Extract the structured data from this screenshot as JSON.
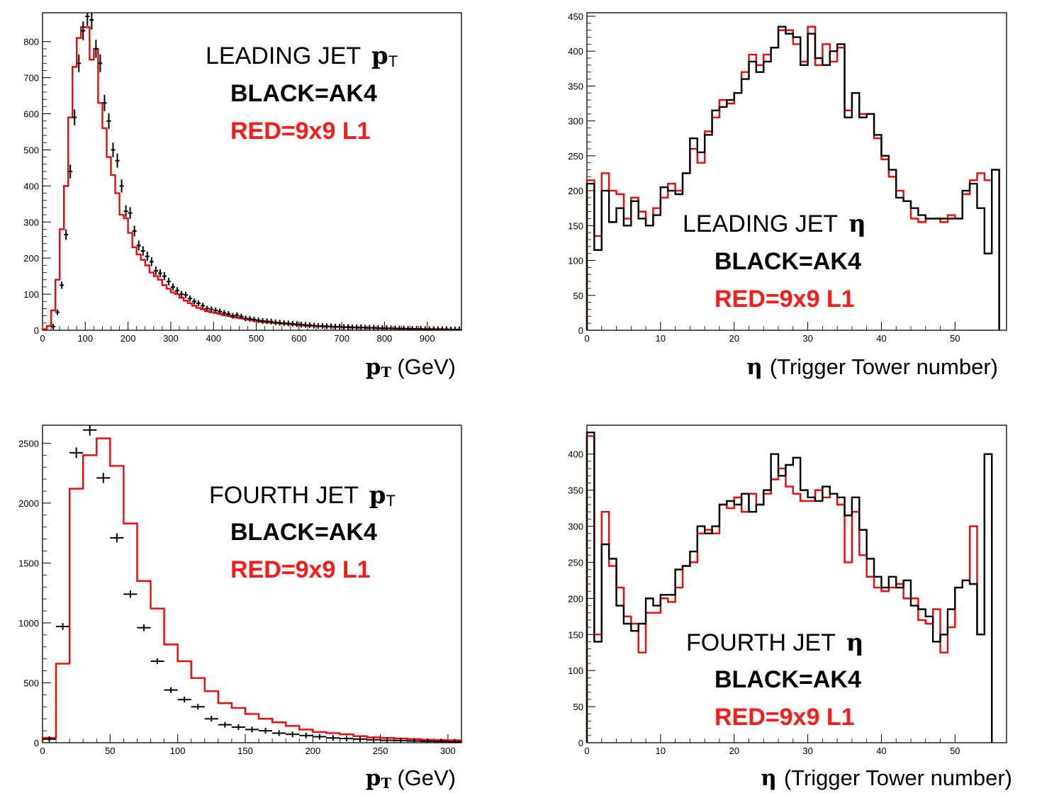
{
  "colors": {
    "ak4": "#000000",
    "l1": "#ff0000"
  },
  "chart_data": [
    {
      "type": "histogram",
      "xlim": [
        0,
        980
      ],
      "ylim": [
        0,
        880
      ],
      "xticks": [
        0,
        100,
        200,
        300,
        400,
        500,
        600,
        700,
        800,
        900
      ],
      "yticks": [
        0,
        100,
        200,
        300,
        400,
        500,
        600,
        700,
        800
      ],
      "xlabel_sym": "pT",
      "xlabel": "(GeV)",
      "annotation": {
        "line1": "LEADING JET",
        "line1_sym": "pT",
        "line2": "BLACK=AK4",
        "line3": "RED=9x9 L1"
      },
      "bin_width": 10,
      "series": [
        {
          "name": "RED=9x9 L1",
          "edges_start": 0,
          "values": [
            3,
            12,
            55,
            140,
            280,
            400,
            590,
            730,
            810,
            840,
            840,
            750,
            780,
            630,
            560,
            480,
            430,
            380,
            320,
            310,
            270,
            230,
            210,
            195,
            180,
            160,
            150,
            140,
            125,
            115,
            105,
            100,
            90,
            82,
            75,
            68,
            62,
            58,
            53,
            50,
            48,
            45,
            42,
            40,
            37,
            35,
            33,
            31,
            29,
            27,
            25,
            23,
            22,
            21,
            20,
            19,
            18,
            17,
            16,
            15,
            14,
            13,
            12,
            12,
            11,
            11,
            10,
            10,
            9,
            9,
            8,
            8,
            8,
            7,
            7,
            7,
            6,
            6,
            6,
            5,
            5,
            5,
            5,
            4,
            4,
            4,
            4,
            3,
            3,
            3,
            3,
            3,
            3,
            2,
            2,
            2,
            2,
            2
          ]
        },
        {
          "name": "BLACK=AK4",
          "type": "points",
          "x": [
            25,
            35,
            45,
            55,
            65,
            75,
            85,
            95,
            105,
            115,
            125,
            135,
            145,
            155,
            165,
            175,
            185,
            195,
            205,
            215,
            225,
            235,
            245,
            255,
            265,
            275,
            285,
            295,
            305,
            315,
            325,
            335,
            345,
            355,
            365,
            375,
            385,
            395,
            405,
            415,
            425,
            435,
            445,
            455,
            465,
            475,
            485,
            495,
            505,
            515,
            525,
            535,
            545,
            555,
            565,
            575,
            585,
            595,
            605,
            615,
            625,
            635,
            645,
            655,
            665,
            675,
            685,
            695,
            705,
            715,
            725,
            735,
            745,
            755,
            765,
            775,
            785,
            795,
            805,
            815,
            825,
            835,
            845,
            855,
            865,
            875,
            885,
            895,
            905,
            915,
            925,
            935,
            945,
            955,
            965,
            975
          ],
          "y": [
            10,
            50,
            125,
            265,
            440,
            590,
            740,
            830,
            870,
            860,
            780,
            740,
            630,
            580,
            500,
            470,
            400,
            330,
            325,
            275,
            235,
            220,
            205,
            190,
            165,
            158,
            150,
            135,
            120,
            110,
            100,
            98,
            88,
            80,
            75,
            68,
            60,
            58,
            55,
            52,
            48,
            45,
            40,
            42,
            38,
            33,
            32,
            30,
            28,
            26,
            25,
            24,
            22,
            21,
            20,
            19,
            18,
            17,
            16,
            15,
            14,
            13,
            12,
            12,
            11,
            11,
            10,
            10,
            9,
            9,
            8,
            8,
            8,
            7,
            7,
            7,
            6,
            6,
            6,
            5,
            5,
            5,
            5,
            4,
            4,
            4,
            4,
            3,
            3,
            3,
            3,
            3,
            3,
            2,
            2,
            2
          ]
        }
      ]
    },
    {
      "type": "histogram",
      "xlim": [
        0,
        57
      ],
      "ylim": [
        0,
        455
      ],
      "xticks": [
        0,
        10,
        20,
        30,
        40,
        50
      ],
      "yticks": [
        0,
        50,
        100,
        150,
        200,
        250,
        300,
        350,
        400,
        450
      ],
      "xlabel_sym": "η",
      "xlabel": "(Trigger Tower number)",
      "annotation": {
        "line1": "LEADING JET",
        "line1_sym": "η",
        "line2": "BLACK=AK4",
        "line3": "RED=9x9 L1"
      },
      "bin_width": 1,
      "series": [
        {
          "name": "RED=9x9 L1",
          "edges_start": 0,
          "values": [
            215,
            135,
            225,
            200,
            195,
            160,
            190,
            170,
            150,
            175,
            190,
            210,
            200,
            225,
            260,
            240,
            285,
            305,
            330,
            325,
            340,
            370,
            395,
            380,
            395,
            405,
            430,
            430,
            410,
            385,
            435,
            380,
            410,
            385,
            405,
            315,
            340,
            310,
            310,
            275,
            245,
            220,
            200,
            185,
            160,
            155,
            160,
            160,
            155,
            165,
            160,
            195,
            215,
            225,
            215,
            230
          ]
        },
        {
          "name": "BLACK=AK4",
          "edges_start": 0,
          "values": [
            210,
            115,
            200,
            155,
            175,
            150,
            185,
            160,
            150,
            165,
            205,
            200,
            195,
            225,
            275,
            255,
            280,
            315,
            320,
            330,
            340,
            360,
            385,
            370,
            385,
            405,
            435,
            425,
            420,
            380,
            425,
            390,
            380,
            400,
            410,
            305,
            340,
            305,
            310,
            280,
            250,
            230,
            190,
            185,
            175,
            165,
            160,
            160,
            160,
            160,
            160,
            200,
            210,
            175,
            110,
            230
          ]
        }
      ]
    },
    {
      "type": "histogram",
      "xlim": [
        0,
        310
      ],
      "ylim": [
        0,
        2650
      ],
      "xticks": [
        0,
        50,
        100,
        150,
        200,
        250,
        300
      ],
      "yticks": [
        0,
        500,
        1000,
        1500,
        2000,
        2500
      ],
      "xlabel_sym": "pT",
      "xlabel": "(GeV)",
      "annotation": {
        "line1": "FOURTH JET",
        "line1_sym": "pT",
        "line2": "BLACK=AK4",
        "line3": "RED=9x9 L1"
      },
      "bin_width": 10,
      "series": [
        {
          "name": "RED=9x9 L1",
          "edges_start": 0,
          "values": [
            40,
            660,
            2120,
            2400,
            2540,
            2310,
            1830,
            1350,
            1120,
            820,
            680,
            540,
            430,
            330,
            290,
            240,
            200,
            170,
            140,
            110,
            90,
            80,
            70,
            55,
            45,
            40,
            35,
            30,
            25,
            22,
            20
          ]
        },
        {
          "name": "BLACK=AK4",
          "type": "points",
          "x": [
            5,
            15,
            25,
            35,
            45,
            55,
            65,
            75,
            85,
            95,
            105,
            115,
            125,
            135,
            145,
            155,
            165,
            175,
            185,
            195,
            205,
            215,
            225,
            235,
            245,
            255,
            265,
            275,
            285,
            295,
            305
          ],
          "y": [
            30,
            970,
            2420,
            2610,
            2210,
            1710,
            1240,
            960,
            680,
            440,
            360,
            300,
            200,
            150,
            130,
            110,
            100,
            80,
            70,
            60,
            50,
            40,
            35,
            30,
            25,
            20,
            18,
            15,
            12,
            10,
            8
          ]
        }
      ]
    },
    {
      "type": "histogram",
      "xlim": [
        0,
        57
      ],
      "ylim": [
        0,
        440
      ],
      "xticks": [
        0,
        10,
        20,
        30,
        40,
        50
      ],
      "yticks": [
        0,
        50,
        100,
        150,
        200,
        250,
        300,
        350,
        400
      ],
      "xlabel_sym": "η",
      "xlabel": "(Trigger Tower number)",
      "annotation": {
        "line1": "FOURTH JET",
        "line1_sym": "η",
        "line2": "BLACK=AK4",
        "line3": "RED=9x9 L1"
      },
      "bin_width": 1,
      "series": [
        {
          "name": "RED=9x9 L1",
          "edges_start": 0,
          "values": [
            425,
            150,
            320,
            245,
            215,
            175,
            165,
            125,
            180,
            180,
            200,
            195,
            215,
            245,
            250,
            290,
            295,
            290,
            330,
            325,
            340,
            320,
            345,
            330,
            345,
            365,
            380,
            355,
            345,
            335,
            335,
            350,
            340,
            345,
            330,
            250,
            320,
            260,
            230,
            215,
            210,
            215,
            220,
            200,
            200,
            170,
            165,
            185,
            125,
            160,
            215,
            225,
            300,
            150,
            400
          ]
        },
        {
          "name": "BLACK=AK4",
          "edges_start": 0,
          "values": [
            430,
            140,
            275,
            255,
            190,
            165,
            155,
            165,
            200,
            190,
            205,
            205,
            240,
            245,
            265,
            300,
            290,
            300,
            330,
            335,
            330,
            345,
            320,
            330,
            350,
            400,
            370,
            385,
            395,
            350,
            340,
            335,
            355,
            345,
            340,
            315,
            340,
            295,
            255,
            230,
            215,
            230,
            215,
            225,
            190,
            185,
            175,
            140,
            150,
            185,
            215,
            225,
            220,
            150,
            400
          ]
        }
      ]
    }
  ]
}
